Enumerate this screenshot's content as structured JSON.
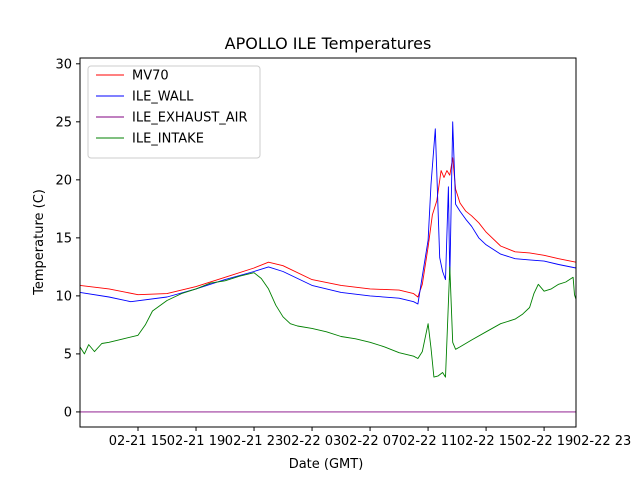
{
  "chart_data": {
    "type": "line",
    "title": "APOLLO ILE Temperatures",
    "xlabel": "Date (GMT)",
    "ylabel": "Temperature (C)",
    "xlim_hours": [
      0,
      34.2
    ],
    "ylim": [
      -1.3,
      30.5
    ],
    "yticks": [
      0,
      5,
      10,
      15,
      20,
      25,
      30
    ],
    "xticks": [
      {
        "hour": 4,
        "label": "02-21 15"
      },
      {
        "hour": 8,
        "label": "02-21 19"
      },
      {
        "hour": 12,
        "label": "02-21 23"
      },
      {
        "hour": 16,
        "label": "02-22 03"
      },
      {
        "hour": 20,
        "label": "02-22 07"
      },
      {
        "hour": 24,
        "label": "02-22 11"
      },
      {
        "hour": 28,
        "label": "02-22 15"
      },
      {
        "hour": 32,
        "label": "02-22 19"
      },
      {
        "hour": 36,
        "label": "02-22 23"
      }
    ],
    "legend": {
      "position": "upper-left"
    },
    "grid": false,
    "series": [
      {
        "name": "MV70",
        "color": "#ff0000",
        "x": [
          0,
          2,
          4,
          6,
          8,
          10,
          12,
          13,
          14,
          16,
          18,
          20,
          22,
          23,
          23.3,
          23.6,
          24,
          24.3,
          24.6,
          24.9,
          25.1,
          25.3,
          25.5,
          25.7,
          25.9,
          26.2,
          26.6,
          27,
          27.5,
          28,
          29,
          30,
          31,
          32,
          33,
          34.2
        ],
        "values": [
          10.9,
          10.6,
          10.1,
          10.2,
          10.8,
          11.6,
          12.4,
          12.9,
          12.6,
          11.4,
          10.9,
          10.6,
          10.5,
          10.2,
          9.9,
          11.0,
          14.2,
          17.0,
          18.2,
          20.8,
          20.2,
          20.8,
          20.4,
          21.9,
          19.2,
          18.0,
          17.3,
          16.9,
          16.3,
          15.5,
          14.3,
          13.8,
          13.7,
          13.5,
          13.2,
          12.9
        ]
      },
      {
        "name": "ILE_WALL",
        "color": "#0000ff",
        "x": [
          0,
          2,
          3.5,
          6,
          8,
          10,
          12,
          13,
          14,
          16,
          18,
          20,
          22,
          23,
          23.3,
          23.6,
          24,
          24.2,
          24.5,
          24.8,
          25.0,
          25.2,
          25.4,
          25.5,
          25.7,
          25.9,
          26.2,
          26.6,
          27,
          27.5,
          28,
          29,
          30,
          31,
          32,
          33,
          34.2
        ],
        "values": [
          10.3,
          9.9,
          9.5,
          9.9,
          10.6,
          11.4,
          12.1,
          12.5,
          12.1,
          10.9,
          10.3,
          10.0,
          9.8,
          9.5,
          9.3,
          11.7,
          14.8,
          19.6,
          24.4,
          13.3,
          12.1,
          11.4,
          19.4,
          11.4,
          25.0,
          17.9,
          17.3,
          16.6,
          16.0,
          15.0,
          14.4,
          13.6,
          13.2,
          13.1,
          13.0,
          12.7,
          12.4
        ]
      },
      {
        "name": "ILE_EXHAUST_AIR",
        "color": "#800080",
        "x": [
          0,
          34.2
        ],
        "values": [
          0,
          0
        ]
      },
      {
        "name": "ILE_INTAKE",
        "color": "#008000",
        "x": [
          0,
          0.3,
          0.6,
          1.0,
          1.5,
          2,
          3,
          4,
          4.5,
          5,
          6,
          7,
          8,
          9,
          10,
          11,
          12,
          12.5,
          13,
          13.5,
          14,
          14.5,
          15,
          16,
          17,
          18,
          19,
          20,
          21,
          22,
          23,
          23.3,
          23.6,
          24,
          24.2,
          24.4,
          24.7,
          25.0,
          25.2,
          25.5,
          25.7,
          25.9,
          26.2,
          27,
          28,
          29,
          30,
          30.5,
          31,
          31.3,
          31.6,
          32,
          32.5,
          33,
          33.5,
          34,
          34.1,
          34.2
        ],
        "values": [
          5.6,
          5.0,
          5.8,
          5.2,
          5.9,
          6.0,
          6.3,
          6.6,
          7.5,
          8.7,
          9.6,
          10.2,
          10.6,
          11.1,
          11.3,
          11.7,
          12.0,
          11.5,
          10.6,
          9.2,
          8.2,
          7.6,
          7.4,
          7.2,
          6.9,
          6.5,
          6.3,
          6.0,
          5.6,
          5.1,
          4.8,
          4.6,
          5.2,
          7.6,
          5.5,
          3.0,
          3.1,
          3.4,
          3.0,
          12.5,
          6.0,
          5.4,
          5.6,
          6.2,
          6.9,
          7.6,
          8.0,
          8.4,
          9.0,
          10.2,
          11.0,
          10.4,
          10.6,
          11.0,
          11.2,
          11.6,
          10.1,
          9.7
        ]
      }
    ]
  }
}
